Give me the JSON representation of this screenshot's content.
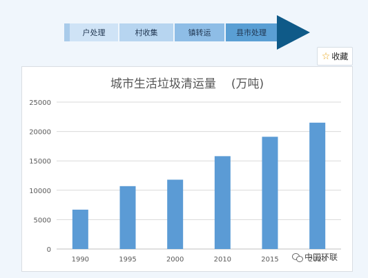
{
  "flow": {
    "steps": [
      "户处理",
      "村收集",
      "镇转运",
      "县市处理"
    ],
    "colors": [
      "#cfe3f6",
      "#b7d5f0",
      "#8ebde6",
      "#5a9fd4"
    ],
    "arrow_color": "#0f5a88"
  },
  "favorite": {
    "icon": "star-icon",
    "label": "收藏"
  },
  "watermark": {
    "icon": "wechat-icon",
    "text": "中国环联"
  },
  "chart_data": {
    "type": "bar",
    "title": "城市生活垃圾清运量",
    "unit": "(万吨)",
    "categories": [
      "1990",
      "1995",
      "2000",
      "2010",
      "2015",
      "2020"
    ],
    "values": [
      6700,
      10700,
      11800,
      15800,
      19100,
      21500
    ],
    "ylim": [
      0,
      25000
    ],
    "yticks": [
      0,
      5000,
      10000,
      15000,
      20000,
      25000
    ],
    "grid": true,
    "bar_color": "#5b9bd5"
  }
}
